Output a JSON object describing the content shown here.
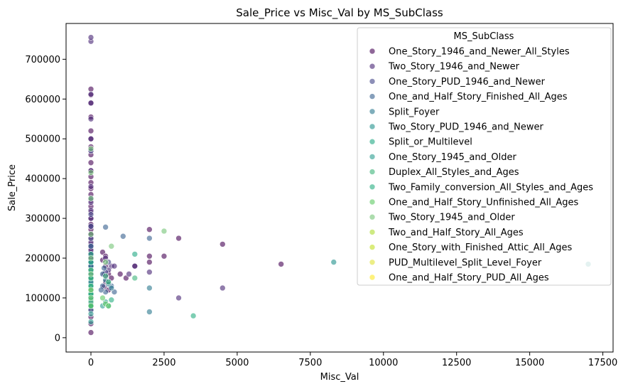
{
  "chart_data": {
    "type": "scatter",
    "title": "Sale_Price vs Misc_Val by MS_SubClass",
    "xlabel": "Misc_Val",
    "ylabel": "Sale_Price",
    "xlim": [
      -850,
      17850
    ],
    "ylim": [
      -36000,
      790000
    ],
    "xticks": [
      0,
      2500,
      5000,
      7500,
      10000,
      12500,
      15000,
      17500
    ],
    "xtick_labels": [
      "0",
      "2500",
      "5000",
      "7500",
      "10000",
      "12500",
      "15000",
      "17500"
    ],
    "yticks": [
      0,
      100000,
      200000,
      300000,
      400000,
      500000,
      600000,
      700000
    ],
    "ytick_labels": [
      "0",
      "100000",
      "200000",
      "300000",
      "400000",
      "500000",
      "600000",
      "700000"
    ],
    "grid": false,
    "legend": {
      "title": "MS_SubClass",
      "position": "top-right"
    },
    "point_opacity": 0.6,
    "series": [
      {
        "name": "One_Story_1946_and_Newer_All_Styles",
        "color": "#440154",
        "points": [
          [
            0,
            13000
          ],
          [
            0,
            35000
          ],
          [
            0,
            52000
          ],
          [
            0,
            68000
          ],
          [
            0,
            82000
          ],
          [
            0,
            95000
          ],
          [
            0,
            105000
          ],
          [
            0,
            112000
          ],
          [
            0,
            120000
          ],
          [
            0,
            128000
          ],
          [
            0,
            135000
          ],
          [
            0,
            142000
          ],
          [
            0,
            150000
          ],
          [
            0,
            158000
          ],
          [
            0,
            165000
          ],
          [
            0,
            172000
          ],
          [
            0,
            180000
          ],
          [
            0,
            188000
          ],
          [
            0,
            195000
          ],
          [
            0,
            205000
          ],
          [
            0,
            215000
          ],
          [
            0,
            225000
          ],
          [
            0,
            235000
          ],
          [
            0,
            248000
          ],
          [
            0,
            260000
          ],
          [
            0,
            272000
          ],
          [
            0,
            285000
          ],
          [
            0,
            300000
          ],
          [
            0,
            315000
          ],
          [
            0,
            330000
          ],
          [
            0,
            345000
          ],
          [
            0,
            360000
          ],
          [
            0,
            375000
          ],
          [
            0,
            390000
          ],
          [
            0,
            405000
          ],
          [
            0,
            420000
          ],
          [
            0,
            440000
          ],
          [
            0,
            460000
          ],
          [
            0,
            480000
          ],
          [
            0,
            500000
          ],
          [
            0,
            520000
          ],
          [
            0,
            555000
          ],
          [
            0,
            590000
          ],
          [
            0,
            610000
          ],
          [
            0,
            625000
          ],
          [
            400,
            215000
          ],
          [
            450,
            160000
          ],
          [
            500,
            180000
          ],
          [
            600,
            160000
          ],
          [
            700,
            150000
          ],
          [
            1000,
            160000
          ],
          [
            1200,
            150000
          ],
          [
            1500,
            180000
          ],
          [
            2000,
            205000
          ],
          [
            2000,
            190000
          ],
          [
            2500,
            205000
          ],
          [
            3000,
            250000
          ],
          [
            4500,
            235000
          ],
          [
            6500,
            185000
          ],
          [
            2000,
            272000
          ],
          [
            450,
            128000
          ],
          [
            500,
            140000
          ],
          [
            600,
            120000
          ],
          [
            400,
            195000
          ],
          [
            500,
            205000
          ]
        ]
      },
      {
        "name": "Two_Story_1946_and_Newer",
        "color": "#482475",
        "points": [
          [
            0,
            140000
          ],
          [
            0,
            160000
          ],
          [
            0,
            180000
          ],
          [
            0,
            200000
          ],
          [
            0,
            220000
          ],
          [
            0,
            240000
          ],
          [
            0,
            260000
          ],
          [
            0,
            280000
          ],
          [
            0,
            300000
          ],
          [
            0,
            320000
          ],
          [
            0,
            340000
          ],
          [
            0,
            380000
          ],
          [
            0,
            420000
          ],
          [
            0,
            470000
          ],
          [
            0,
            500000
          ],
          [
            0,
            550000
          ],
          [
            0,
            590000
          ],
          [
            0,
            612000
          ],
          [
            0,
            745000
          ],
          [
            0,
            755000
          ],
          [
            500,
            200000
          ],
          [
            700,
            180000
          ],
          [
            1500,
            180000
          ],
          [
            2000,
            165000
          ],
          [
            3000,
            100000
          ],
          [
            4500,
            125000
          ],
          [
            500,
            155000
          ],
          [
            600,
            170000
          ],
          [
            800,
            180000
          ],
          [
            1300,
            160000
          ]
        ]
      },
      {
        "name": "One_Story_PUD_1946_and_Newer",
        "color": "#414487",
        "points": [
          [
            0,
            130000
          ],
          [
            0,
            150000
          ],
          [
            0,
            170000
          ],
          [
            0,
            190000
          ],
          [
            0,
            210000
          ],
          [
            0,
            230000
          ],
          [
            0,
            250000
          ],
          [
            0,
            280000
          ],
          [
            0,
            310000
          ],
          [
            0,
            350000
          ],
          [
            0,
            470000
          ],
          [
            600,
            190000
          ],
          [
            500,
            165000
          ]
        ]
      },
      {
        "name": "One_and_Half_Story_Finished_All_Ages",
        "color": "#355f8d",
        "points": [
          [
            0,
            70000
          ],
          [
            0,
            85000
          ],
          [
            0,
            100000
          ],
          [
            0,
            115000
          ],
          [
            0,
            130000
          ],
          [
            0,
            145000
          ],
          [
            0,
            160000
          ],
          [
            0,
            180000
          ],
          [
            0,
            200000
          ],
          [
            0,
            230000
          ],
          [
            400,
            130000
          ],
          [
            500,
            115000
          ],
          [
            600,
            140000
          ],
          [
            700,
            130000
          ],
          [
            800,
            115000
          ],
          [
            400,
            160000
          ],
          [
            1100,
            255000
          ],
          [
            500,
            278000
          ],
          [
            2000,
            250000
          ],
          [
            450,
            175000
          ],
          [
            350,
            120000
          ]
        ]
      },
      {
        "name": "Split_Foyer",
        "color": "#2a788e",
        "points": [
          [
            0,
            120000
          ],
          [
            0,
            135000
          ],
          [
            0,
            150000
          ],
          [
            0,
            165000
          ],
          [
            0,
            180000
          ],
          [
            500,
            145000
          ],
          [
            600,
            135000
          ],
          [
            700,
            125000
          ],
          [
            2000,
            65000
          ],
          [
            2000,
            125000
          ]
        ]
      },
      {
        "name": "Two_Story_PUD_1946_and_Newer",
        "color": "#21918c",
        "points": [
          [
            0,
            100000
          ],
          [
            0,
            120000
          ],
          [
            0,
            140000
          ],
          [
            0,
            160000
          ],
          [
            0,
            190000
          ],
          [
            8300,
            190000
          ],
          [
            17000,
            185000
          ]
        ]
      },
      {
        "name": "Split_or_Multilevel",
        "color": "#22a884",
        "points": [
          [
            0,
            150000
          ],
          [
            0,
            170000
          ],
          [
            0,
            190000
          ],
          [
            0,
            210000
          ],
          [
            1500,
            210000
          ]
        ]
      },
      {
        "name": "One_Story_1945_and_Older",
        "color": "#2a9d8f",
        "points": [
          [
            0,
            40000
          ],
          [
            0,
            60000
          ],
          [
            0,
            80000
          ],
          [
            0,
            95000
          ],
          [
            0,
            110000
          ],
          [
            0,
            125000
          ],
          [
            600,
            80000
          ],
          [
            500,
            90000
          ],
          [
            400,
            80000
          ]
        ]
      },
      {
        "name": "Duplex_All_Styles_and_Ages",
        "color": "#3db47a",
        "points": [
          [
            0,
            90000
          ],
          [
            0,
            110000
          ],
          [
            0,
            130000
          ],
          [
            0,
            150000
          ],
          [
            0,
            170000
          ],
          [
            1500,
            150000
          ],
          [
            500,
            155000
          ],
          [
            600,
            140000
          ]
        ]
      },
      {
        "name": "Two_Family_conversion_All_Styles_and_Ages",
        "color": "#27ad81",
        "points": [
          [
            0,
            80000
          ],
          [
            0,
            110000
          ],
          [
            0,
            130000
          ],
          [
            3500,
            55000
          ],
          [
            700,
            95000
          ]
        ]
      },
      {
        "name": "One_and_Half_Story_Unfinished_All_Ages",
        "color": "#5ec962",
        "points": [
          [
            0,
            80000
          ],
          [
            0,
            100000
          ],
          [
            0,
            120000
          ],
          [
            400,
            100000
          ],
          [
            500,
            85000
          ],
          [
            600,
            80000
          ]
        ]
      },
      {
        "name": "Two_Story_1945_and_Older",
        "color": "#74c476",
        "points": [
          [
            0,
            120000
          ],
          [
            0,
            160000
          ],
          [
            0,
            200000
          ],
          [
            0,
            260000
          ],
          [
            0,
            350000
          ],
          [
            0,
            415000
          ],
          [
            0,
            475000
          ],
          [
            700,
            230000
          ],
          [
            2500,
            268000
          ],
          [
            500,
            190000
          ]
        ]
      },
      {
        "name": "Two_and_Half_Story_All_Ages",
        "color": "#addc30",
        "points": []
      },
      {
        "name": "One_Story_with_Finished_Attic_All_Ages",
        "color": "#c2df23",
        "points": []
      },
      {
        "name": "PUD_Multilevel_Split_Level_Foyer",
        "color": "#e0e336",
        "points": []
      },
      {
        "name": "One_and_Half_Story_PUD_All_Ages",
        "color": "#fde725",
        "points": []
      }
    ]
  }
}
